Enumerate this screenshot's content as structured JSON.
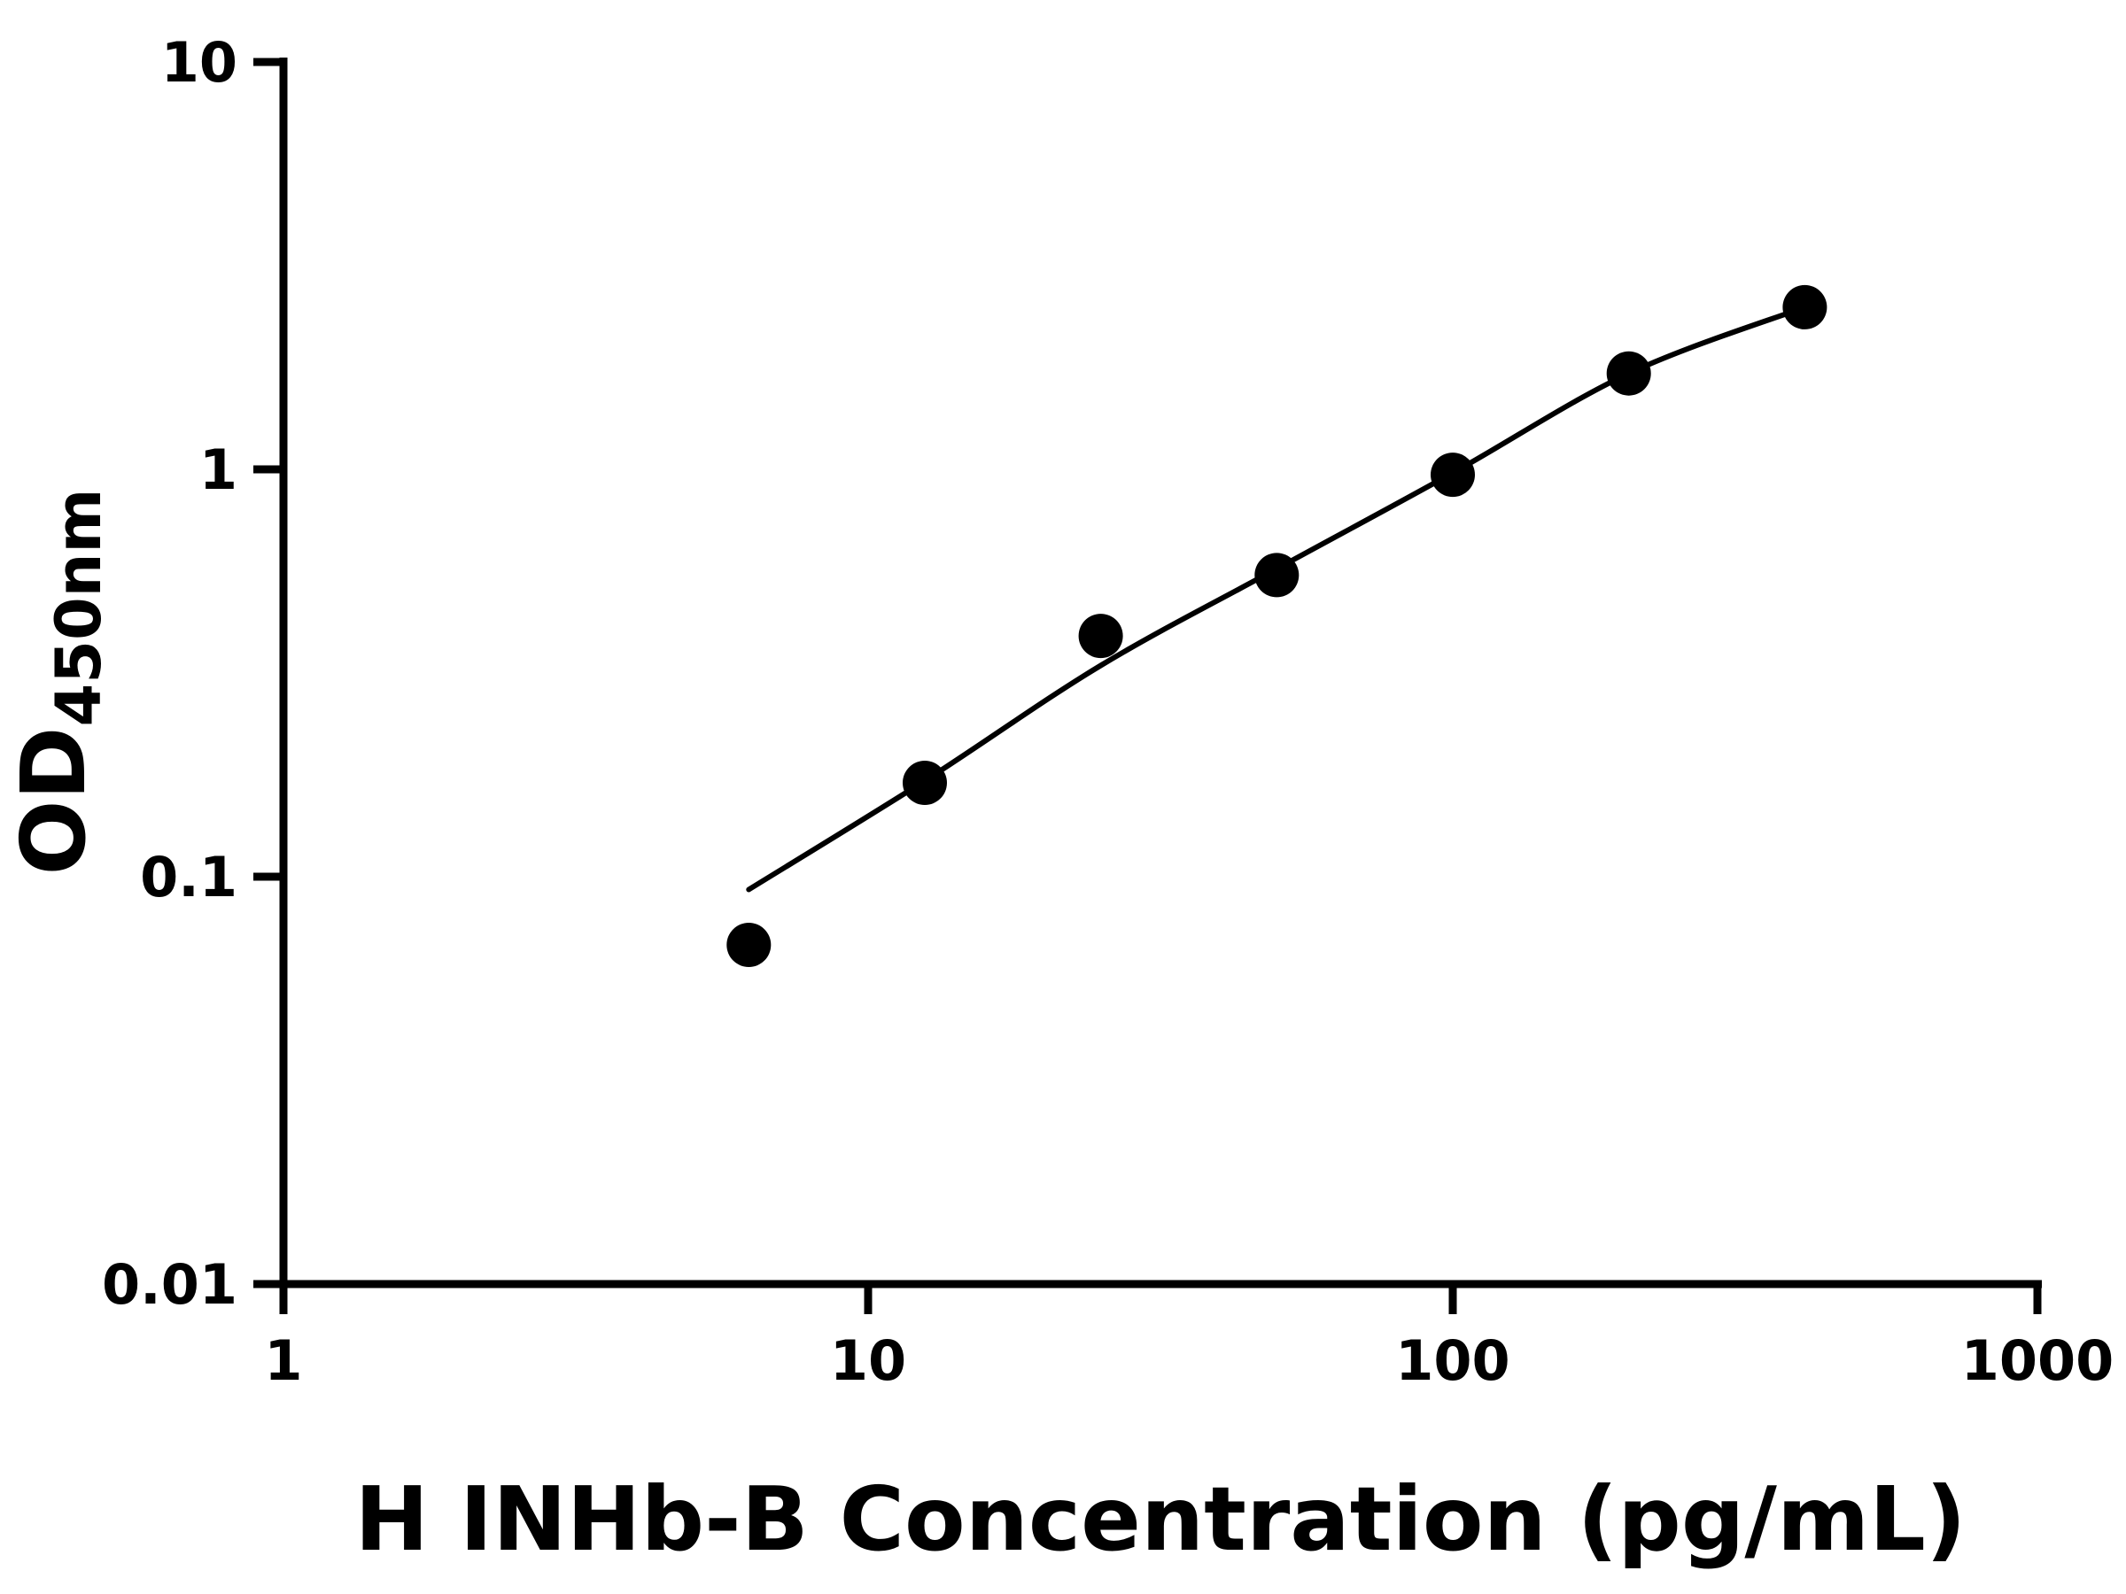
{
  "colors": {
    "background": "#ffffff",
    "foreground": "#000000",
    "marker": "#000000",
    "curve": "#000000"
  },
  "chart_data": {
    "type": "scatter",
    "title": "",
    "xlabel": "H INHb-B Concentration (pg/mL)",
    "ylabel": "OD450nm",
    "ylabel_main": "OD",
    "ylabel_sub": "450nm",
    "x_scale": "log10",
    "y_scale": "log10",
    "xlim": [
      1,
      1000
    ],
    "ylim": [
      0.01,
      10
    ],
    "grid": false,
    "legend": false,
    "x_ticks": [
      {
        "value": 1,
        "label": "1"
      },
      {
        "value": 10,
        "label": "10"
      },
      {
        "value": 100,
        "label": "100"
      },
      {
        "value": 1000,
        "label": "1000"
      }
    ],
    "y_ticks": [
      {
        "value": 0.01,
        "label": "0.01"
      },
      {
        "value": 0.1,
        "label": "0.1"
      },
      {
        "value": 1,
        "label": "1"
      },
      {
        "value": 10,
        "label": "10"
      }
    ],
    "series": [
      {
        "name": "H INHb-B standard",
        "marker": "filled-circle",
        "color": "#000000",
        "x": [
          6.25,
          12.5,
          25,
          50,
          100,
          200,
          400
        ],
        "y": [
          0.068,
          0.17,
          0.39,
          0.55,
          0.97,
          1.72,
          2.5
        ]
      }
    ],
    "fit_curve": {
      "name": "standard-curve-fit-line",
      "color": "#000000",
      "points": [
        [
          6.25,
          0.093
        ],
        [
          12.5,
          0.172
        ],
        [
          25,
          0.33
        ],
        [
          50,
          0.57
        ],
        [
          100,
          0.98
        ],
        [
          200,
          1.72
        ],
        [
          400,
          2.5
        ]
      ]
    }
  }
}
